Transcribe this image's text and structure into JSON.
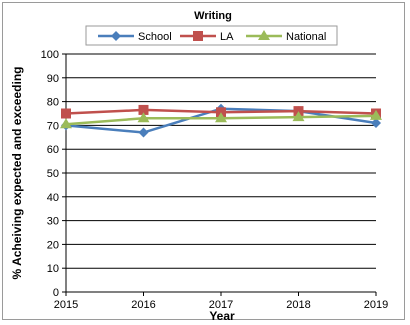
{
  "chart_data": {
    "type": "line",
    "title": "Writing",
    "xlabel": "Year",
    "ylabel": "% Acheiving expected and exceeding",
    "x": [
      "2015",
      "2016",
      "2017",
      "2018",
      "2019"
    ],
    "ylim": [
      0,
      100
    ],
    "yticks": [
      0,
      10,
      20,
      30,
      40,
      50,
      60,
      70,
      80,
      90,
      100
    ],
    "grid": true,
    "legend_position": "top",
    "series": [
      {
        "name": "School",
        "color": "#4a7ebb",
        "marker": "diamond",
        "values": [
          70,
          67,
          77,
          76,
          71
        ]
      },
      {
        "name": "LA",
        "color": "#c0504d",
        "marker": "square",
        "values": [
          75,
          76.5,
          75.5,
          76,
          75
        ]
      },
      {
        "name": "National",
        "color": "#9bbb59",
        "marker": "triangle",
        "values": [
          70.5,
          73,
          73,
          73.5,
          74
        ]
      }
    ]
  }
}
